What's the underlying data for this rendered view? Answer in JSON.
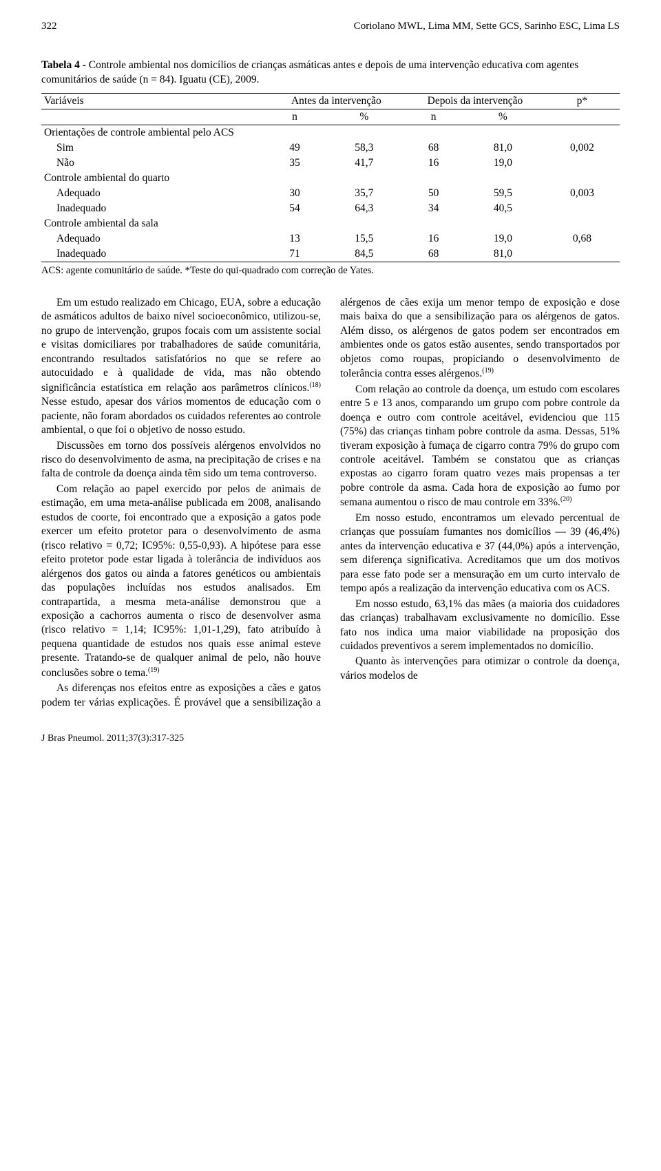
{
  "head": {
    "page_no": "322",
    "authors": "Coriolano MWL, Lima MM, Sette GCS, Sarinho ESC, Lima LS"
  },
  "table": {
    "caption_lead": "Tabela 4 - ",
    "caption_rest": "Controle ambiental nos domicílios de crianças asmáticas antes e depois de uma intervenção educativa com agentes comunitários de saúde (n = 84). Iguatu (CE), 2009.",
    "col_var": "Variáveis",
    "col_antes": "Antes da intervenção",
    "col_depois": "Depois da intervenção",
    "col_p": "p*",
    "sub_n": "n",
    "sub_pct": "%",
    "rows": [
      {
        "label": "Orientações de controle ambiental pelo ACS",
        "kind": "group"
      },
      {
        "label": "Sim",
        "kind": "sub",
        "n1": "49",
        "p1": "58,3",
        "n2": "68",
        "p2": "81,0",
        "pv": "0,002"
      },
      {
        "label": "Não",
        "kind": "sub",
        "n1": "35",
        "p1": "41,7",
        "n2": "16",
        "p2": "19,0",
        "pv": ""
      },
      {
        "label": "Controle ambiental do quarto",
        "kind": "group"
      },
      {
        "label": "Adequado",
        "kind": "sub",
        "n1": "30",
        "p1": "35,7",
        "n2": "50",
        "p2": "59,5",
        "pv": "0,003"
      },
      {
        "label": "Inadequado",
        "kind": "sub",
        "n1": "54",
        "p1": "64,3",
        "n2": "34",
        "p2": "40,5",
        "pv": ""
      },
      {
        "label": "Controle ambiental da sala",
        "kind": "group"
      },
      {
        "label": "Adequado",
        "kind": "sub",
        "n1": "13",
        "p1": "15,5",
        "n2": "16",
        "p2": "19,0",
        "pv": "0,68"
      },
      {
        "label": "Inadequado",
        "kind": "sub",
        "n1": "71",
        "p1": "84,5",
        "n2": "68",
        "p2": "81,0",
        "pv": ""
      }
    ],
    "note": "ACS: agente comunitário de saúde. *Teste do qui-quadrado com correção de Yates."
  },
  "paras": {
    "p1a": "Em um estudo realizado em Chicago, EUA, sobre a educação de asmáticos adultos de baixo nível socioeconômico, utilizou-se, no grupo de intervenção, grupos focais com um assistente social e visitas domiciliares por trabalhadores de saúde comunitária, encontrando resultados satisfatórios no que se refere ao autocuidado e à qualidade de vida, mas não obtendo significância estatística em relação aos parâmetros clínicos.",
    "p1_ref": "(18)",
    "p1b": " Nesse estudo, apesar dos vários momentos de educação com o paciente, não foram abordados os cuidados referentes ao controle ambiental, o que foi o objetivo de nosso estudo.",
    "p2": "Discussões em torno dos possíveis alérgenos envolvidos no risco do desenvolvimento de asma, na precipitação de crises e na falta de controle da doença ainda têm sido um tema controverso.",
    "p3a": "Com relação ao papel exercido por pelos de animais de estimação, em uma meta-análise publicada em 2008, analisando estudos de coorte, foi encontrado que a exposição a gatos pode exercer um efeito protetor para o desenvolvimento de asma (risco relativo = 0,72; IC95%: 0,55-0,93). A hipótese para esse efeito protetor pode estar ligada à tolerância de indivíduos aos alérgenos dos gatos ou ainda a fatores genéticos ou ambientais das populações incluídas nos estudos analisados. Em contrapartida, a mesma meta-análise demonstrou que a exposição a cachorros aumenta o risco de desenvolver asma (risco relativo = 1,14; IC95%: 1,01-1,29), fato atribuído à pequena quantidade de estudos nos quais esse animal esteve presente. Tratando-se de qualquer animal de pelo, não houve conclusões sobre o tema.",
    "p3_ref": "(19)",
    "p4a": "As diferenças nos efeitos entre as exposições a cães e gatos podem ter várias explicações. É provável que a sensibilização a alérgenos de cães exija um menor tempo de exposição e dose mais baixa do que a sensibilização para os alérgenos de gatos. Além disso, os alérgenos de gatos podem ser encontrados em ambientes onde os gatos estão ausentes, sendo transportados por objetos como roupas, propiciando o desenvolvimento de tolerância contra esses alérgenos.",
    "p4_ref": "(19)",
    "p5a": "Com relação ao controle da doença, um estudo com escolares entre 5 e 13 anos, comparando um grupo com pobre controle da doença e outro com controle aceitável, evidenciou que 115 (75%) das crianças tinham pobre controle da asma. Dessas, 51% tiveram exposição à fumaça de cigarro contra 79% do grupo com controle aceitável. Também se constatou que as crianças expostas ao cigarro foram quatro vezes mais propensas a ter pobre controle da asma. Cada hora de exposição ao fumo por semana aumentou o risco de mau controle em 33%.",
    "p5_ref": "(20)",
    "p6": "Em nosso estudo, encontramos um elevado percentual de crianças que possuíam fumantes nos domicílios — 39 (46,4%) antes da intervenção educativa e 37 (44,0%) após a intervenção, sem diferença significativa. Acreditamos que um dos motivos para esse fato pode ser a mensuração em um curto intervalo de tempo após a realização da intervenção educativa com os ACS.",
    "p7": "Em nosso estudo, 63,1% das mães (a maioria dos cuidadores das crianças) trabalhavam exclusivamente no domicílio. Esse fato nos indica uma maior viabilidade na proposição dos cuidados preventivos a serem implementados no domicílio.",
    "p8": "Quanto às intervenções para otimizar o controle da doença, vários modelos de"
  },
  "footer": "J Bras Pneumol. 2011;37(3):317-325"
}
